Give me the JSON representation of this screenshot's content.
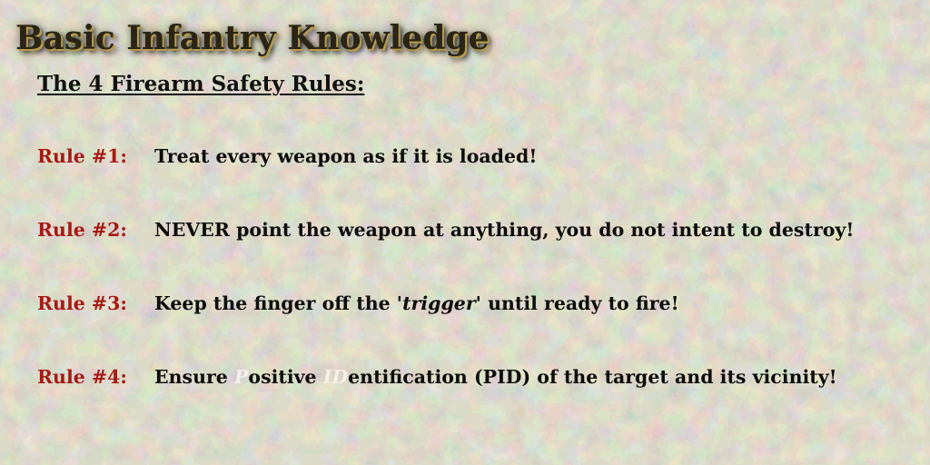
{
  "page": {
    "title": "Basic Infantry Knowledge",
    "subtitle": "The 4 Firearm Safety Rules:"
  },
  "rules": [
    {
      "label": "Rule #1:",
      "text": "Treat every weapon as if it is loaded!"
    },
    {
      "label": "Rule #2:",
      "text": "NEVER point the weapon at anything, you do not intent to destroy!"
    },
    {
      "label": "Rule #3:",
      "text_before": "Keep the finger off the '",
      "text_italic": "trigger",
      "text_after": "' until ready to fire!"
    },
    {
      "label": "Rule #4:",
      "text_1": "Ensure ",
      "hl_1": "P",
      "text_2": "ositive ",
      "hl_2": "ID",
      "text_3": "entification (PID) of the target and its vicinity!"
    }
  ],
  "colors": {
    "background": "#b8ae94",
    "camo_dark": "#8d9479",
    "camo_mid": "#a7a48a",
    "camo_light": "#cfc4a8",
    "rule_label": "#a51a14",
    "rule_text": "#0d0d0d",
    "highlight": "#f4f1e8",
    "title_text": "#2a2516",
    "title_glow": "#b89a4a"
  }
}
